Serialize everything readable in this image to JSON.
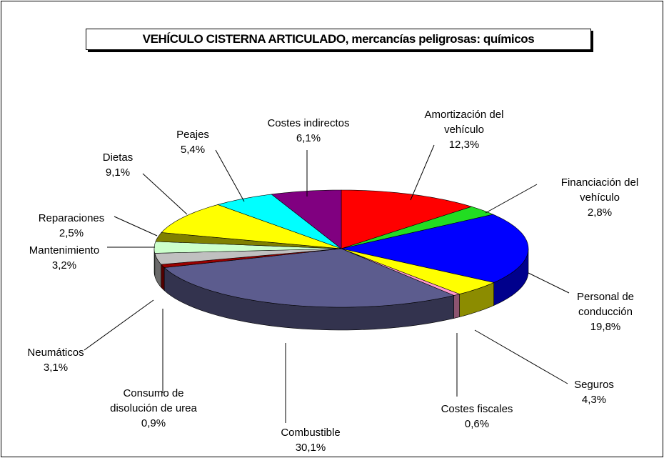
{
  "chart_data": {
    "type": "pie3d",
    "title": "VEHÍCULO CISTERNA ARTICULADO, mercancías peligrosas: químicos",
    "categories": [
      "Amortización del vehículo",
      "Financiación del vehículo",
      "Personal de conducción",
      "Seguros",
      "Costes fiscales",
      "Combustible",
      "Consumo de disolución de urea",
      "Neumáticos",
      "Mantenimiento",
      "Reparaciones",
      "Dietas",
      "Peajes",
      "Costes indirectos"
    ],
    "values": [
      12.3,
      2.8,
      19.8,
      4.3,
      0.6,
      30.1,
      0.9,
      3.1,
      3.2,
      2.5,
      9.1,
      5.4,
      6.1
    ],
    "value_labels": [
      "12,3%",
      "2,8%",
      "19,8%",
      "4,3%",
      "0,6%",
      "30,1%",
      "0,9%",
      "3,1%",
      "3,2%",
      "2,5%",
      "9,1%",
      "5,4%",
      "6,1%"
    ],
    "colors": [
      "#ff0000",
      "#22dd22",
      "#0000ff",
      "#ffff00",
      "#ff99cc",
      "#5c5c8e",
      "#990000",
      "#c0c0c0",
      "#ccffcc",
      "#808000",
      "#ffff00",
      "#00ffff",
      "#800080"
    ]
  }
}
